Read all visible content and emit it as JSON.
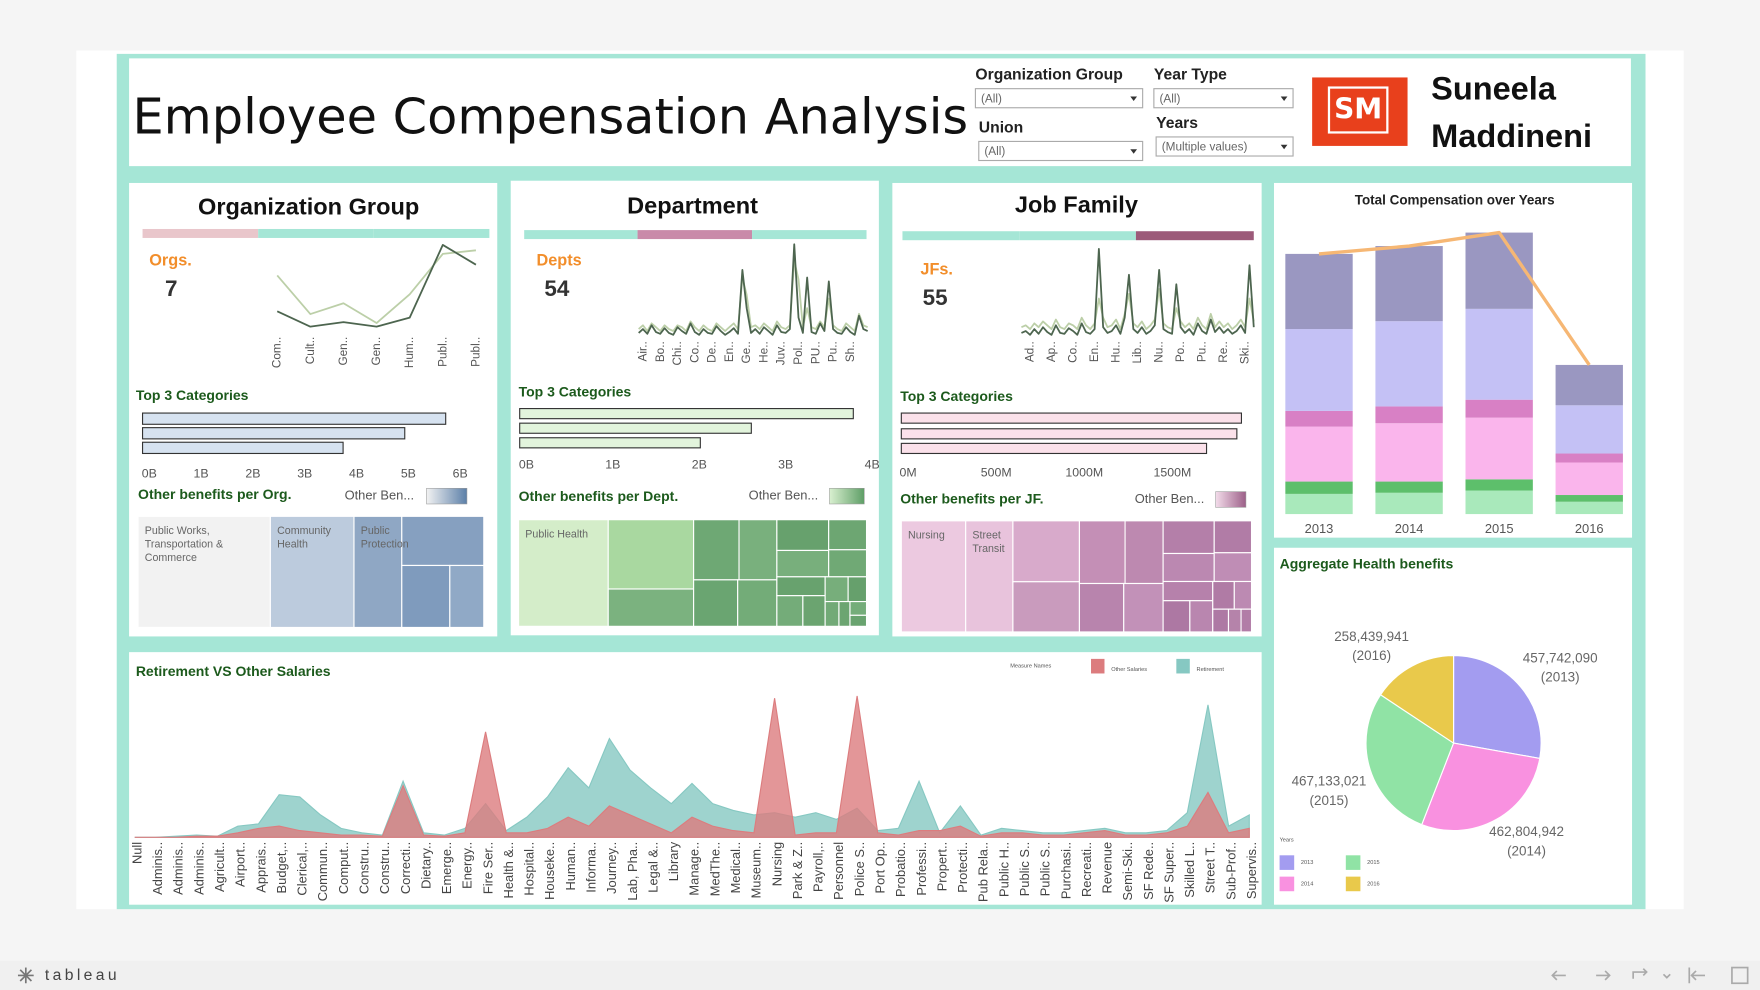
{
  "header": {
    "title": "Employee Compensation Analysis",
    "logo": "SM",
    "author": [
      "Suneela",
      "Maddineni"
    ]
  },
  "filters": [
    {
      "label": "Organization Group",
      "value": "(All)"
    },
    {
      "label": "Year Type",
      "value": "(All)"
    },
    {
      "label": "Union",
      "value": "(All)"
    },
    {
      "label": "Years",
      "value": "(Multiple values)"
    }
  ],
  "footer": {
    "brand": "tableau"
  },
  "chart_data": [
    {
      "type": "line",
      "title": "Organization Group",
      "kpi_label": "Orgs.",
      "kpi_value": 7,
      "categories": [
        "Com..",
        "Cult..",
        "Gen..",
        "Gen..",
        "Hum..",
        "Publ..",
        "Publ.."
      ],
      "ylim": [
        0,
        100
      ],
      "series": [
        {
          "color": "#bccfa8",
          "values": [
            62,
            19,
            31,
            9,
            41,
            86,
            90
          ]
        },
        {
          "color": "#4d654f",
          "values": [
            22,
            5,
            10,
            5,
            15,
            96,
            74
          ]
        }
      ]
    },
    {
      "type": "bar",
      "orientation": "horizontal",
      "title": "Top 3 Categories",
      "color": "#d6e2f0",
      "values": [
        5850000000,
        5060000000,
        3870000000
      ],
      "xlim": [
        0,
        6000000000
      ],
      "xticks": [
        {
          "value": 0,
          "label": "0B"
        },
        {
          "value": 1000000000,
          "label": "1B"
        },
        {
          "value": 2000000000,
          "label": "2B"
        },
        {
          "value": 3000000000,
          "label": "3B"
        },
        {
          "value": 4000000000,
          "label": "4B"
        },
        {
          "value": 5000000000,
          "label": "5B"
        },
        {
          "value": 6000000000,
          "label": "6B"
        }
      ]
    },
    {
      "type": "treemap",
      "title": "Other benefits per Org.",
      "legend_title": "Other Ben...",
      "legend_colors": [
        "#f2f2f2",
        "#5b7fa8"
      ],
      "labels": [
        "Public Works, Transportation & Commerce",
        "Community Health",
        "Public Protection",
        null,
        null,
        null
      ],
      "values": [
        573,
        362,
        207,
        157,
        116,
        82
      ],
      "colors": [
        "#f2f2f2",
        "#bccbdd",
        "#8fa7c4",
        "#86a0c0",
        "#7f9bbd",
        "#90a9c6"
      ]
    },
    {
      "type": "line",
      "title": "Department",
      "kpi_label": "Depts",
      "kpi_value": 54,
      "categories": [
        null,
        "Air..",
        null,
        null,
        null,
        "Bo..",
        null,
        null,
        null,
        "Chi..",
        null,
        null,
        null,
        "Co..",
        null,
        null,
        null,
        "De..",
        null,
        null,
        null,
        "En..",
        null,
        null,
        null,
        "Ge..",
        null,
        null,
        null,
        "He..",
        null,
        null,
        null,
        "Juv..",
        null,
        null,
        null,
        "Pol..",
        null,
        null,
        null,
        "PU..",
        null,
        null,
        null,
        "Pu..",
        null,
        null,
        null,
        "Sh..",
        null,
        null,
        null,
        null
      ],
      "ylim": [
        0,
        100
      ],
      "series": [
        {
          "color": "#bccfa8",
          "values": [
            8,
            12,
            6,
            14,
            10,
            6,
            12,
            8,
            6,
            12,
            10,
            6,
            16,
            10,
            6,
            12,
            8,
            6,
            14,
            10,
            6,
            10,
            14,
            8,
            62,
            44,
            10,
            12,
            8,
            14,
            10,
            6,
            16,
            10,
            8,
            12,
            80,
            60,
            10,
            30,
            10,
            8,
            16,
            10,
            40,
            12,
            8,
            6,
            14,
            10,
            6,
            24,
            12,
            10
          ]
        },
        {
          "color": "#4d654f",
          "values": [
            4,
            8,
            3,
            12,
            5,
            3,
            9,
            4,
            2,
            10,
            6,
            3,
            14,
            5,
            2,
            8,
            4,
            3,
            11,
            6,
            2,
            5,
            9,
            3,
            70,
            30,
            4,
            8,
            3,
            10,
            6,
            2,
            12,
            5,
            4,
            8,
            97,
            20,
            4,
            62,
            5,
            3,
            14,
            6,
            58,
            8,
            4,
            3,
            10,
            5,
            2,
            22,
            8,
            6
          ]
        }
      ]
    },
    {
      "type": "bar",
      "orientation": "horizontal",
      "title": "Top 3 Categories",
      "color": "#e2f4dc",
      "values": [
        3860000000,
        2680000000,
        2090000000
      ],
      "xlim": [
        0,
        4000000000
      ],
      "xticks": [
        {
          "value": 0,
          "label": "0B"
        },
        {
          "value": 1000000000,
          "label": "1B"
        },
        {
          "value": 2000000000,
          "label": "2B"
        },
        {
          "value": 3000000000,
          "label": "3B"
        },
        {
          "value": 4000000000,
          "label": "4B"
        }
      ]
    },
    {
      "type": "treemap",
      "title": "Other benefits per Dept.",
      "legend_title": "Other Ben...",
      "legend_colors": [
        "#d9f0d0",
        "#5e9e66"
      ],
      "labels": [
        "Public Health",
        null,
        null,
        null,
        null,
        null,
        null,
        null,
        null,
        null,
        null,
        null,
        null,
        null,
        null,
        null,
        null,
        null,
        null,
        null
      ],
      "values": [
        420,
        260,
        140,
        120,
        100,
        90,
        80,
        70,
        60,
        50,
        45,
        40,
        35,
        30,
        25,
        20,
        15,
        12,
        10,
        8
      ],
      "colors": [
        "#d4edc9",
        "#a9d8a0",
        "#7bb27f",
        "#6ea874",
        "#79b07d",
        "#6aa571",
        "#73ac78",
        "#67a16d",
        "#78af7c",
        "#6da672",
        "#70a975",
        "#68a26e",
        "#74ac79",
        "#6ba470",
        "#77ae7b",
        "#66a06c",
        "#72aa77",
        "#6ca571",
        "#75ad7a",
        "#69a36f"
      ]
    },
    {
      "type": "line",
      "title": "Job Family",
      "kpi_label": "JFs.",
      "kpi_value": 55,
      "categories": [
        null,
        null,
        "Ad..",
        null,
        null,
        null,
        null,
        "Ap..",
        null,
        null,
        null,
        null,
        "Co..",
        null,
        null,
        null,
        null,
        "En..",
        null,
        null,
        null,
        null,
        "Hu..",
        null,
        null,
        null,
        null,
        "Lib..",
        null,
        null,
        null,
        null,
        "Nu..",
        null,
        null,
        null,
        null,
        "Po..",
        null,
        null,
        null,
        null,
        "Pu..",
        null,
        null,
        null,
        null,
        "Re..",
        null,
        null,
        null,
        null,
        "Ski..",
        null,
        null
      ],
      "ylim": [
        0,
        100
      ],
      "series": [
        {
          "color": "#bccfa8",
          "values": [
            10,
            12,
            8,
            14,
            10,
            16,
            12,
            8,
            18,
            10,
            8,
            14,
            12,
            8,
            20,
            12,
            8,
            14,
            40,
            20,
            10,
            12,
            18,
            8,
            24,
            45,
            14,
            10,
            16,
            8,
            12,
            18,
            50,
            14,
            10,
            8,
            30,
            16,
            10,
            14,
            8,
            20,
            12,
            8,
            24,
            10,
            16,
            10,
            14,
            8,
            12,
            18,
            10,
            40,
            16
          ]
        },
        {
          "color": "#4d654f",
          "values": [
            4,
            6,
            2,
            8,
            3,
            10,
            5,
            2,
            12,
            4,
            3,
            9,
            6,
            2,
            14,
            5,
            3,
            8,
            92,
            10,
            4,
            6,
            12,
            3,
            20,
            65,
            8,
            4,
            10,
            3,
            6,
            12,
            70,
            8,
            5,
            3,
            55,
            10,
            4,
            8,
            2,
            14,
            6,
            3,
            18,
            5,
            10,
            4,
            8,
            3,
            6,
            12,
            4,
            75,
            10
          ]
        }
      ]
    },
    {
      "type": "bar",
      "orientation": "horizontal",
      "title": "Top 3 Categories",
      "color": "#fbe1ea",
      "values": [
        1930000000,
        1904000000,
        1732000000
      ],
      "xlim": [
        0,
        2000000000
      ],
      "xticks": [
        {
          "value": 0,
          "label": "0M"
        },
        {
          "value": 500000000,
          "label": "500M"
        },
        {
          "value": 1000000000,
          "label": "1000M"
        },
        {
          "value": 1500000000,
          "label": "1500M"
        }
      ]
    },
    {
      "type": "treemap",
      "title": "Other benefits per JF.",
      "legend_title": "Other Ben...",
      "legend_colors": [
        "#f3dcea",
        "#9c5f88"
      ],
      "labels": [
        "Nursing",
        "Street Transit",
        null,
        null,
        null,
        null,
        null,
        null,
        null,
        null,
        null,
        null,
        null,
        null,
        null,
        null,
        null,
        null,
        null,
        null
      ],
      "values": [
        300,
        220,
        170,
        140,
        120,
        100,
        90,
        80,
        70,
        60,
        50,
        45,
        40,
        35,
        30,
        25,
        20,
        15,
        12,
        10
      ],
      "colors": [
        "#ecc9e0",
        "#e8c3dc",
        "#d8aacb",
        "#c99bbd",
        "#c48fb6",
        "#bd89b0",
        "#b884ad",
        "#c291b8",
        "#b47fa9",
        "#bb88b1",
        "#b17ca6",
        "#bf8db5",
        "#b681ab",
        "#ad78a3",
        "#b986af",
        "#b07ba5",
        "#bc8ab2",
        "#ae79a4",
        "#b583aa",
        "#b27da7"
      ]
    },
    {
      "type": "bar",
      "stacked": true,
      "title": "Total Compensation over Years",
      "categories": [
        "2013",
        "2014",
        "2015",
        "2016"
      ],
      "ylim": [
        0,
        3500
      ],
      "series": [
        {
          "color": "#a9e9bb",
          "values": [
            234,
            247,
            273,
            143
          ]
        },
        {
          "color": "#5dbf6b",
          "values": [
            143,
            130,
            130,
            78
          ]
        },
        {
          "color": "#fab5ec",
          "values": [
            637,
            676,
            715,
            377
          ]
        },
        {
          "color": "#d880c5",
          "values": [
            182,
            195,
            208,
            104
          ]
        },
        {
          "color": "#c4c1f5",
          "values": [
            949,
            988,
            1053,
            559
          ]
        },
        {
          "color": "#9a97c1",
          "values": [
            871,
            871,
            884,
            468
          ]
        },
        {
          "color": "#f6b774",
          "type": "line",
          "values": [
            3016,
            3107,
            3263,
            1729
          ]
        }
      ]
    },
    {
      "type": "pie",
      "title": "Aggregate Health benefits",
      "legend_title": "Years",
      "categories": [
        "2013",
        "2014",
        "2015",
        "2016"
      ],
      "values": [
        457742090,
        462804942,
        467133021,
        258439941
      ],
      "value_labels": [
        "457,742,090",
        "462,804,942",
        "467,133,021",
        "258,439,941"
      ],
      "label_years": [
        "(2013)",
        "(2014)",
        "(2015)",
        "(2016)"
      ],
      "colors": [
        "#a39cf0",
        "#f991e0",
        "#90e3a5",
        "#e9c94b"
      ]
    },
    {
      "type": "area",
      "title": "Retirement VS Other Salaries",
      "legend_title": "Measure Names",
      "ylim": [
        0,
        140
      ],
      "categories": [
        "Null",
        "Adminis..",
        "Adminis..",
        "Adminis..",
        "Agricult..",
        "Airport..",
        "Apprais..",
        "Budget,..",
        "Clerical,..",
        "Commun..",
        "Comput..",
        "Constru..",
        "Constru..",
        "Correcti..",
        "Dietary..",
        "Emerge..",
        "Energy..",
        "Fire Ser..",
        "Health &..",
        "Hospital..",
        "Houseke..",
        "Human..",
        "Informa..",
        "Journey..",
        "Lab, Pha..",
        "Legal &..",
        "Library",
        "Manage..",
        "MedThe..",
        "Medical..",
        "Museum..",
        "Nursing",
        "Park & Z..",
        "Payroll,..",
        "Personnel",
        "Police S..",
        "Port Op..",
        "Probatio..",
        "Professi..",
        "Propert..",
        "Protecti..",
        "Pub Rela..",
        "Public H..",
        "Public S..",
        "Public S..",
        "Purchasi..",
        "Recreati..",
        "Revenue",
        "Semi-Ski..",
        "SF Rede..",
        "SF Super..",
        "Skilled L..",
        "Street T..",
        "Sub-Prof..",
        "Supervis.."
      ],
      "series": [
        {
          "name": "Other Salaries",
          "color": "#dc7c7e",
          "values": [
            0,
            0,
            0,
            1,
            1,
            4,
            8,
            10,
            6,
            4,
            2,
            2,
            1,
            46,
            2,
            1,
            4,
            94,
            4,
            4,
            8,
            18,
            10,
            28,
            20,
            12,
            4,
            18,
            10,
            6,
            4,
            124,
            2,
            4,
            4,
            126,
            4,
            2,
            6,
            6,
            10,
            1,
            4,
            4,
            2,
            2,
            4,
            6,
            2,
            2,
            4,
            10,
            40,
            4,
            8
          ]
        },
        {
          "name": "Retirement",
          "color": "#86c8c2",
          "values": [
            0,
            0,
            1,
            2,
            1,
            10,
            12,
            38,
            36,
            20,
            8,
            4,
            2,
            50,
            4,
            2,
            8,
            30,
            6,
            18,
            36,
            62,
            44,
            88,
            60,
            44,
            30,
            48,
            30,
            24,
            20,
            22,
            18,
            22,
            16,
            26,
            6,
            8,
            50,
            4,
            28,
            2,
            8,
            6,
            4,
            4,
            6,
            8,
            4,
            4,
            6,
            22,
            118,
            10,
            20
          ]
        }
      ]
    }
  ]
}
